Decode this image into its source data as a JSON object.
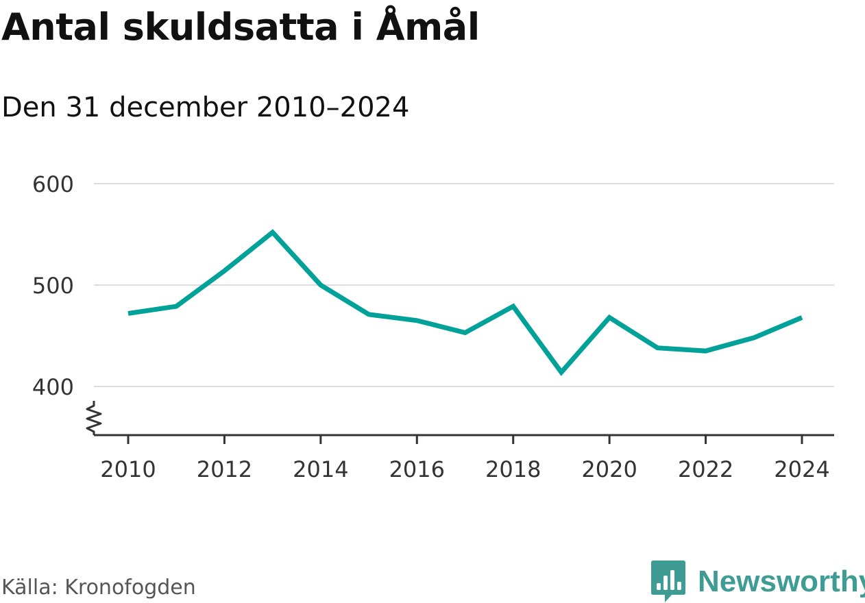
{
  "title": "Antal skuldsatta i Åmål",
  "subtitle": "Den 31 december 2010–2024",
  "source": "Källa: Kronofogden",
  "brand": {
    "name": "Newsworthy",
    "color": "#3f9c95",
    "icon": "bar-chart-icon"
  },
  "chart_data": {
    "type": "line",
    "title": "Antal skuldsatta i Åmål",
    "subtitle": "Den 31 december 2010–2024",
    "xlabel": "",
    "ylabel": "",
    "x": [
      2010,
      2011,
      2012,
      2013,
      2014,
      2015,
      2016,
      2017,
      2018,
      2019,
      2020,
      2021,
      2022,
      2023,
      2024
    ],
    "series": [
      {
        "name": "Antal skuldsatta",
        "color": "#00a199",
        "values": [
          472,
          479,
          514,
          552,
          500,
          471,
          465,
          453,
          479,
          414,
          468,
          438,
          435,
          448,
          468
        ]
      }
    ],
    "y_ticks": [
      400,
      500,
      600
    ],
    "y_tick_labels": [
      "400",
      "500",
      "600"
    ],
    "x_ticks": [
      2010,
      2012,
      2014,
      2016,
      2018,
      2020,
      2022,
      2024
    ],
    "x_tick_labels": [
      "2010",
      "2012",
      "2014",
      "2016",
      "2018",
      "2020",
      "2022",
      "2024"
    ],
    "ylim": [
      352,
      600
    ],
    "y_axis_break": true,
    "grid": true,
    "legend": "none"
  }
}
